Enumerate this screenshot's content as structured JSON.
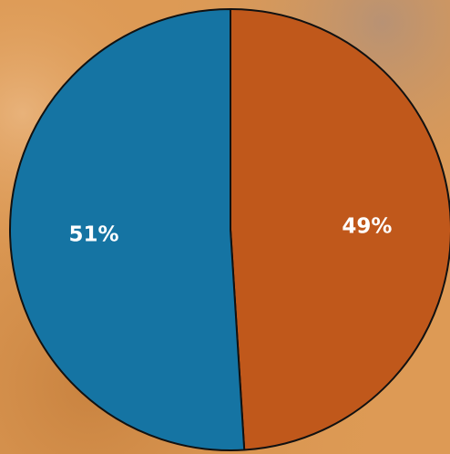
{
  "chart_data": {
    "type": "pie",
    "slices": [
      {
        "label": "49%",
        "value": 49,
        "color": "#c0581b"
      },
      {
        "label": "51%",
        "value": 51,
        "color": "#1574a3"
      }
    ]
  },
  "background": {
    "base_color": "#dd9a55",
    "sky_tint": "#b58e68"
  },
  "outline_color": "#111111"
}
